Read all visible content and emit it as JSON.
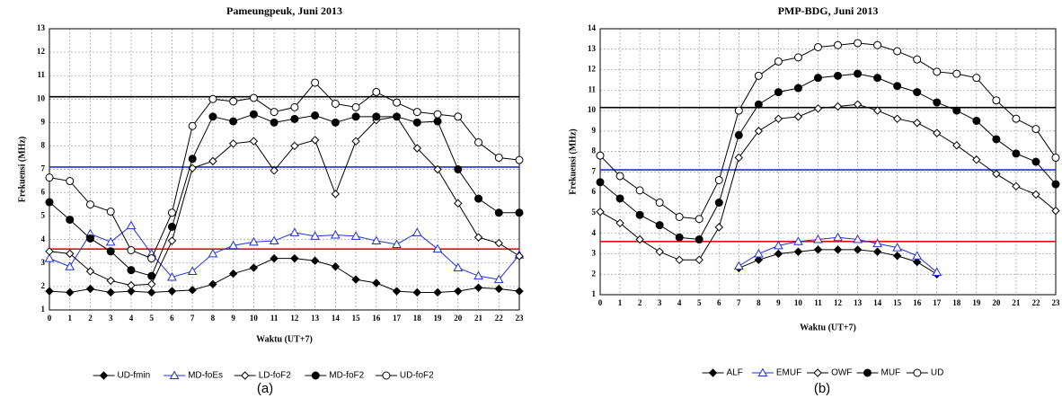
{
  "chart_data": [
    {
      "type": "line",
      "title": "Pameungpeuk, Juni 2013",
      "x_label": "Waktu (UT+7)",
      "y_label": "Frekuensi (MHz)",
      "caption": "(a)",
      "x": [
        0,
        1,
        2,
        3,
        4,
        5,
        6,
        7,
        8,
        9,
        10,
        11,
        12,
        13,
        14,
        15,
        16,
        17,
        18,
        19,
        20,
        21,
        22,
        23
      ],
      "xlim": [
        0,
        23
      ],
      "xticks": [
        0,
        1,
        2,
        3,
        4,
        5,
        6,
        7,
        8,
        9,
        10,
        11,
        12,
        13,
        14,
        15,
        16,
        17,
        18,
        19,
        20,
        21,
        22,
        23
      ],
      "ylim": [
        1,
        13
      ],
      "yticks": [
        1,
        2,
        3,
        4,
        5,
        6,
        7,
        8,
        9,
        10,
        11,
        12,
        13
      ],
      "grid": true,
      "legend": "bottom",
      "hlines": [
        {
          "value": 10.1,
          "color": "#000000"
        },
        {
          "value": 7.1,
          "color": "#1f2fd6"
        },
        {
          "value": 3.6,
          "color": "#e01010"
        }
      ],
      "series": [
        {
          "name": "UD-fmin",
          "color": "#000000",
          "marker": "diamond",
          "filled": true,
          "values": [
            1.8,
            1.75,
            1.9,
            1.75,
            1.8,
            1.75,
            1.8,
            1.85,
            2.1,
            2.55,
            2.8,
            3.2,
            3.2,
            3.1,
            2.85,
            2.3,
            2.15,
            1.8,
            1.75,
            1.75,
            1.8,
            1.95,
            1.9,
            1.8
          ]
        },
        {
          "name": "MD-foEs",
          "color": "#1f2fd6",
          "marker": "triangle",
          "filled": false,
          "values": [
            3.2,
            2.85,
            4.25,
            3.9,
            4.6,
            3.4,
            2.4,
            2.65,
            3.4,
            3.75,
            3.9,
            3.95,
            4.3,
            4.15,
            4.2,
            4.15,
            3.95,
            3.8,
            4.3,
            3.6,
            2.8,
            2.45,
            2.3,
            3.35
          ]
        },
        {
          "name": "LD-foF2",
          "color": "#000000",
          "marker": "diamond",
          "filled": false,
          "values": [
            3.5,
            3.4,
            2.65,
            2.25,
            2.05,
            2.1,
            3.95,
            7.05,
            7.35,
            8.1,
            8.2,
            6.95,
            8.0,
            8.25,
            5.95,
            8.2,
            9.1,
            9.25,
            7.9,
            7.0,
            5.55,
            4.1,
            3.85,
            3.3
          ]
        },
        {
          "name": "MD-foF2",
          "color": "#000000",
          "marker": "circle",
          "filled": true,
          "values": [
            5.6,
            4.85,
            4.05,
            3.5,
            2.7,
            2.45,
            4.55,
            7.45,
            9.25,
            9.05,
            9.35,
            9.0,
            9.15,
            9.3,
            9.0,
            9.25,
            9.25,
            9.25,
            9.0,
            9.05,
            7.0,
            5.75,
            5.15,
            5.15
          ]
        },
        {
          "name": "UD-foF2",
          "color": "#000000",
          "marker": "circle",
          "filled": false,
          "values": [
            6.65,
            6.5,
            5.5,
            5.2,
            3.55,
            3.2,
            5.15,
            8.85,
            10.0,
            9.9,
            10.05,
            9.45,
            9.65,
            10.7,
            9.8,
            9.65,
            10.3,
            9.85,
            9.45,
            9.35,
            9.25,
            8.15,
            7.5,
            7.4
          ]
        }
      ]
    },
    {
      "type": "line",
      "title": "PMP-BDG, Juni 2013",
      "x_label": "Waktu (UT+7)",
      "y_label": "Frekuensi (MHz)",
      "caption": "(b)",
      "x": [
        0,
        1,
        2,
        3,
        4,
        5,
        6,
        7,
        8,
        9,
        10,
        11,
        12,
        13,
        14,
        15,
        16,
        17,
        18,
        19,
        20,
        21,
        22,
        23
      ],
      "xlim": [
        0,
        23
      ],
      "xticks": [
        0,
        1,
        2,
        3,
        4,
        5,
        6,
        7,
        8,
        9,
        10,
        11,
        12,
        13,
        14,
        15,
        16,
        17,
        18,
        19,
        20,
        21,
        22,
        23
      ],
      "ylim": [
        1,
        14
      ],
      "yticks": [
        1,
        2,
        3,
        4,
        5,
        6,
        7,
        8,
        9,
        10,
        11,
        12,
        13,
        14
      ],
      "grid": true,
      "legend": "bottom",
      "hlines": [
        {
          "value": 10.15,
          "color": "#000000"
        },
        {
          "value": 7.1,
          "color": "#1f2fd6"
        },
        {
          "value": 3.6,
          "color": "#e01010"
        }
      ],
      "series": [
        {
          "name": "ALF",
          "color": "#000000",
          "marker": "diamond",
          "filled": true,
          "values": [
            null,
            null,
            null,
            null,
            null,
            null,
            null,
            2.3,
            2.7,
            3.0,
            3.1,
            3.2,
            3.2,
            3.2,
            3.1,
            2.9,
            2.6,
            2.0,
            null,
            null,
            null,
            null,
            null,
            null
          ]
        },
        {
          "name": "EMUF",
          "color": "#1f2fd6",
          "marker": "triangle",
          "filled": false,
          "values": [
            null,
            null,
            null,
            null,
            null,
            null,
            null,
            2.4,
            3.0,
            3.4,
            3.6,
            3.7,
            3.8,
            3.7,
            3.5,
            3.3,
            2.9,
            2.1,
            null,
            null,
            null,
            null,
            null,
            null
          ]
        },
        {
          "name": "OWF",
          "color": "#000000",
          "marker": "diamond",
          "filled": false,
          "values": [
            5.05,
            4.5,
            3.7,
            3.1,
            2.7,
            2.7,
            4.3,
            7.7,
            9.0,
            9.6,
            9.7,
            10.1,
            10.2,
            10.3,
            10.0,
            9.6,
            9.4,
            8.9,
            8.3,
            7.6,
            6.9,
            6.3,
            5.9,
            5.1
          ]
        },
        {
          "name": "MUF",
          "color": "#000000",
          "marker": "circle",
          "filled": true,
          "values": [
            6.5,
            5.7,
            4.9,
            4.4,
            3.8,
            3.7,
            5.5,
            8.8,
            10.3,
            10.9,
            11.1,
            11.6,
            11.7,
            11.8,
            11.6,
            11.2,
            10.9,
            10.4,
            10.0,
            9.5,
            8.6,
            7.9,
            7.5,
            6.4
          ]
        },
        {
          "name": "UD",
          "color": "#000000",
          "marker": "circle",
          "filled": false,
          "values": [
            7.8,
            6.8,
            6.1,
            5.5,
            4.8,
            4.7,
            6.6,
            10.0,
            11.7,
            12.4,
            12.6,
            13.1,
            13.2,
            13.3,
            13.2,
            12.9,
            12.5,
            11.9,
            11.8,
            11.6,
            10.5,
            9.6,
            9.1,
            7.7
          ]
        }
      ]
    }
  ]
}
